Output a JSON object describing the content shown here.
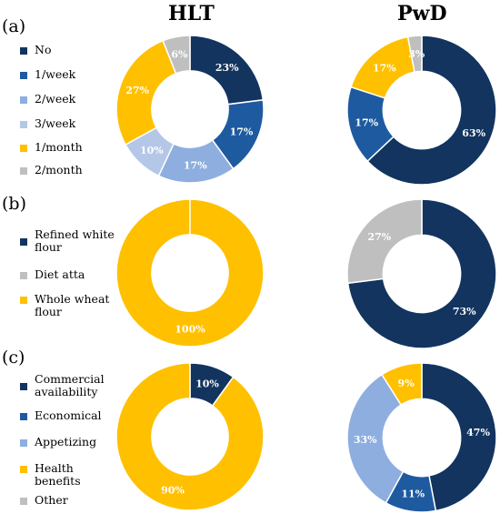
{
  "titles": {
    "left": "HLT",
    "right": "PwD"
  },
  "colors": {
    "navy": "#12345f",
    "blue": "#1e5aa0",
    "lightblue": "#8eaee0",
    "paleblue": "#b4c7e7",
    "gold": "#ffc000",
    "grey": "#bfbfbf"
  },
  "panels": [
    {
      "label": "(a)",
      "legend": [
        {
          "label": "No",
          "color": "#12345f"
        },
        {
          "label": "1/week",
          "color": "#1e5aa0"
        },
        {
          "label": "2/week",
          "color": "#8eaee0"
        },
        {
          "label": "3/week",
          "color": "#b4c7e7"
        },
        {
          "label": "1/month",
          "color": "#ffc000"
        },
        {
          "label": "2/month",
          "color": "#bfbfbf"
        }
      ]
    },
    {
      "label": "(b)",
      "legend": [
        {
          "label": "Refined white\nflour",
          "color": "#12345f"
        },
        {
          "label": "Diet atta",
          "color": "#bfbfbf"
        },
        {
          "label": "Whole wheat\nflour",
          "color": "#ffc000"
        }
      ]
    },
    {
      "label": "(c)",
      "legend": [
        {
          "label": "Commercial\navailability",
          "color": "#12345f"
        },
        {
          "label": "Economical",
          "color": "#1e5aa0"
        },
        {
          "label": "Appetizing",
          "color": "#8eaee0"
        },
        {
          "label": "Health\nbenefits",
          "color": "#ffc000"
        },
        {
          "label": "Other",
          "color": "#bfbfbf"
        }
      ]
    }
  ],
  "chart_data": [
    {
      "type": "pie",
      "panel": "(a)",
      "group": "HLT",
      "slices": [
        {
          "name": "No",
          "value": 23,
          "label": "23%",
          "color": "#12345f"
        },
        {
          "name": "1/week",
          "value": 17,
          "label": "17%",
          "color": "#1e5aa0"
        },
        {
          "name": "2/week",
          "value": 17,
          "label": "17%",
          "color": "#8eaee0"
        },
        {
          "name": "3/week",
          "value": 10,
          "label": "10%",
          "color": "#b4c7e7"
        },
        {
          "name": "1/month",
          "value": 27,
          "label": "27%",
          "color": "#ffc000"
        },
        {
          "name": "2/month",
          "value": 6,
          "label": "6%",
          "color": "#bfbfbf"
        }
      ]
    },
    {
      "type": "pie",
      "panel": "(a)",
      "group": "PwD",
      "slices": [
        {
          "name": "No",
          "value": 63,
          "label": "63%",
          "color": "#12345f"
        },
        {
          "name": "1/week",
          "value": 17,
          "label": "17%",
          "color": "#1e5aa0"
        },
        {
          "name": "1/month",
          "value": 17,
          "label": "17%",
          "color": "#ffc000"
        },
        {
          "name": "2/month",
          "value": 3,
          "label": "3%",
          "color": "#bfbfbf"
        }
      ]
    },
    {
      "type": "pie",
      "panel": "(b)",
      "group": "HLT",
      "slices": [
        {
          "name": "Whole wheat flour",
          "value": 100,
          "label": "100%",
          "color": "#ffc000"
        }
      ]
    },
    {
      "type": "pie",
      "panel": "(b)",
      "group": "PwD",
      "slices": [
        {
          "name": "Refined white flour",
          "value": 73,
          "label": "73%",
          "color": "#12345f"
        },
        {
          "name": "Diet atta",
          "value": 27,
          "label": "27%",
          "color": "#bfbfbf"
        }
      ]
    },
    {
      "type": "pie",
      "panel": "(c)",
      "group": "HLT",
      "slices": [
        {
          "name": "Commercial availability",
          "value": 10,
          "label": "10%",
          "color": "#12345f"
        },
        {
          "name": "Health benefits",
          "value": 90,
          "label": "90%",
          "color": "#ffc000"
        }
      ]
    },
    {
      "type": "pie",
      "panel": "(c)",
      "group": "PwD",
      "slices": [
        {
          "name": "Commercial availability",
          "value": 47,
          "label": "47%",
          "color": "#12345f"
        },
        {
          "name": "Economical",
          "value": 11,
          "label": "11%",
          "color": "#1e5aa0"
        },
        {
          "name": "Appetizing",
          "value": 33,
          "label": "33%",
          "color": "#8eaee0"
        },
        {
          "name": "Health benefits",
          "value": 9,
          "label": "9%",
          "color": "#ffc000"
        }
      ]
    }
  ]
}
